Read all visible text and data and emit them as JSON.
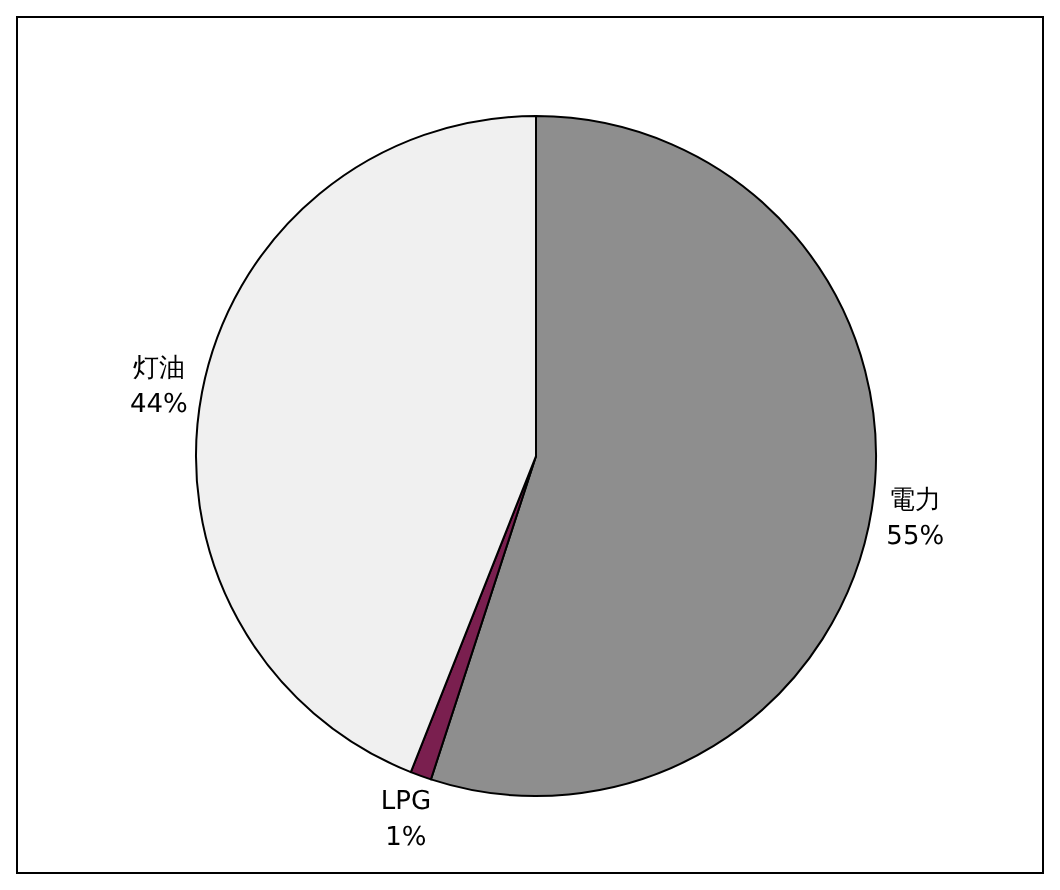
{
  "chart_data": {
    "type": "pie",
    "categories": [
      "電力",
      "LPG",
      "灯油"
    ],
    "values": [
      55,
      1,
      44
    ],
    "value_labels": [
      "55%",
      "1%",
      "44%"
    ],
    "colors": [
      "#8e8e8e",
      "#7a1f4f",
      "#f0f0f0"
    ],
    "legend": false
  }
}
